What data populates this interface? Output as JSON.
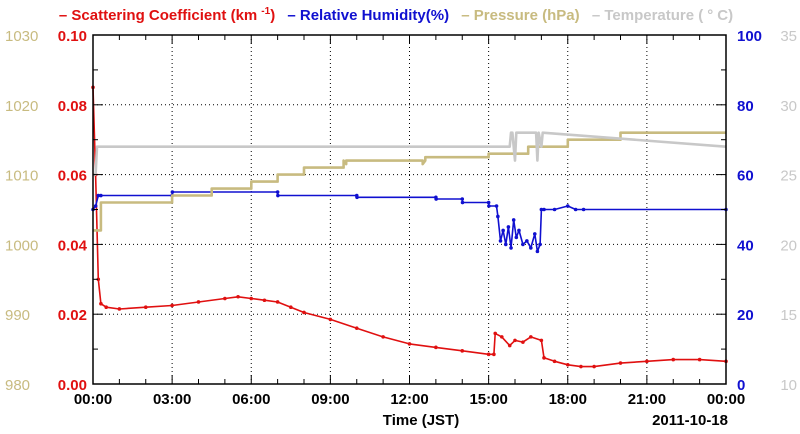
{
  "chart_data": {
    "type": "line",
    "legend": [
      {
        "name": "Scattering Coefficient (km",
        "sup": "-1",
        "tail": ")",
        "color": "#e01010",
        "axis": "y_sc"
      },
      {
        "name": "Relative Humidity(%)",
        "color": "#1010d0",
        "axis": "y_rh"
      },
      {
        "name": "Pressure (hPa)",
        "color": "#c8bb80",
        "axis": "y_p"
      },
      {
        "name": "Temperature (",
        "tail": "C)",
        "color": "#c8c8c8",
        "axis": "y_t"
      }
    ],
    "xlabel": "Time (JST)",
    "date_label": "2011-10-18",
    "x_range_hours": [
      0,
      24
    ],
    "x_ticks": [
      "00:00",
      "03:00",
      "06:00",
      "09:00",
      "12:00",
      "15:00",
      "18:00",
      "21:00",
      "00:00"
    ],
    "grid": true,
    "axes": {
      "y_p": {
        "side": "left-outer",
        "range": [
          980,
          1030
        ],
        "ticks": [
          "980",
          "990",
          "1000",
          "1010",
          "1020",
          "1030"
        ],
        "color": "#c8bb80"
      },
      "y_sc": {
        "side": "left-inner",
        "range": [
          0,
          0.1
        ],
        "ticks": [
          "0.00",
          "0.02",
          "0.04",
          "0.06",
          "0.08",
          "0.10"
        ],
        "color": "#e01010"
      },
      "y_rh": {
        "side": "right-inner",
        "range": [
          0,
          100
        ],
        "ticks": [
          "0",
          "20",
          "40",
          "60",
          "80",
          "100"
        ],
        "color": "#1010d0"
      },
      "y_t": {
        "side": "right-outer",
        "range": [
          10,
          35
        ],
        "ticks": [
          "10",
          "15",
          "20",
          "25",
          "30",
          "35"
        ],
        "color": "#c8c8c8"
      }
    },
    "series": [
      {
        "name": "Scattering Coefficient",
        "axis": "y_sc",
        "color": "#e01010",
        "markers": true,
        "x": [
          0.0,
          0.1,
          0.2,
          0.3,
          0.5,
          1.0,
          2.0,
          3.0,
          4.0,
          5.0,
          5.5,
          6.0,
          6.5,
          7.0,
          7.5,
          8.0,
          9.0,
          10.0,
          11.0,
          12.0,
          13.0,
          14.0,
          15.0,
          15.2,
          15.25,
          15.5,
          15.8,
          16.0,
          16.3,
          16.6,
          17.0,
          17.1,
          17.5,
          18.0,
          18.5,
          19.0,
          20.0,
          21.0,
          22.0,
          23.0,
          24.0
        ],
        "y": [
          0.085,
          0.06,
          0.03,
          0.023,
          0.022,
          0.0215,
          0.022,
          0.0225,
          0.0235,
          0.0245,
          0.025,
          0.0245,
          0.024,
          0.0235,
          0.022,
          0.0205,
          0.0185,
          0.016,
          0.0135,
          0.0115,
          0.0105,
          0.0095,
          0.0085,
          0.0085,
          0.0145,
          0.0135,
          0.011,
          0.0125,
          0.012,
          0.0135,
          0.0125,
          0.0075,
          0.0065,
          0.0055,
          0.005,
          0.005,
          0.006,
          0.0065,
          0.007,
          0.007,
          0.0065
        ]
      },
      {
        "name": "Relative Humidity",
        "axis": "y_rh",
        "color": "#1010d0",
        "markers": true,
        "x": [
          0.0,
          0.1,
          0.2,
          0.3,
          3.0,
          3.01,
          7.0,
          7.01,
          10.0,
          10.01,
          13.0,
          13.01,
          14.0,
          14.01,
          15.0,
          15.01,
          15.3,
          15.35,
          15.45,
          15.55,
          15.65,
          15.75,
          15.85,
          15.95,
          16.05,
          16.15,
          16.3,
          16.45,
          16.6,
          16.75,
          16.85,
          16.95,
          17.0,
          17.1,
          17.5,
          18.0,
          18.3,
          18.6,
          24.0
        ],
        "y": [
          50,
          51,
          54,
          54,
          54,
          55,
          55,
          54,
          54,
          53.5,
          53.5,
          53,
          53,
          52,
          52,
          51,
          51,
          48,
          41,
          44,
          40,
          45,
          39,
          47,
          42,
          44,
          40,
          41,
          39,
          43,
          38,
          40,
          50,
          50,
          50,
          51,
          50,
          50,
          50
        ]
      },
      {
        "name": "Pressure",
        "axis": "y_p",
        "color": "#c8bb80",
        "markers": false,
        "x": [
          0.0,
          0.3,
          0.3,
          3.0,
          3.0,
          4.5,
          4.5,
          6.0,
          6.0,
          7.0,
          7.0,
          8.0,
          8.0,
          9.5,
          9.5,
          9.6,
          9.6,
          12.5,
          12.5,
          12.6,
          12.6,
          15.0,
          15.0,
          16.5,
          16.5,
          18.0,
          18.0,
          20.0,
          20.0,
          24.0
        ],
        "y": [
          1002,
          1002,
          1006,
          1006,
          1007,
          1007,
          1008,
          1008,
          1009,
          1009,
          1010,
          1010,
          1011,
          1011,
          1012,
          1011.5,
          1012,
          1012,
          1011.5,
          1012,
          1012.5,
          1012.5,
          1013,
          1013,
          1014,
          1014,
          1015,
          1015,
          1016,
          1016
        ]
      },
      {
        "name": "Temperature",
        "axis": "y_t",
        "color": "#c8c8c8",
        "markers": false,
        "x": [
          0.0,
          0.1,
          0.15,
          0.2,
          15.8,
          15.85,
          15.9,
          16.0,
          16.05,
          16.8,
          16.85,
          16.9,
          17.0,
          17.05,
          24.0
        ],
        "y": [
          25,
          25,
          27,
          27,
          27,
          28,
          28,
          26,
          28,
          28,
          26,
          28,
          27,
          28,
          27
        ]
      }
    ]
  }
}
